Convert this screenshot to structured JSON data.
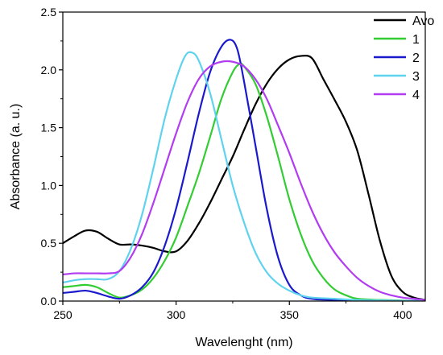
{
  "chart_data": {
    "type": "line",
    "xlabel": "Wavelenght (nm)",
    "ylabel": "Absorbance (a. u.)",
    "xlim": [
      250,
      410
    ],
    "ylim": [
      0,
      2.5
    ],
    "xticks": [
      250,
      300,
      350,
      400
    ],
    "yticks": [
      0.0,
      0.5,
      1.0,
      1.5,
      2.0,
      2.5
    ],
    "xtick_labels": [
      "250",
      "300",
      "350",
      "400"
    ],
    "ytick_labels": [
      "0.0",
      "0.5",
      "1.0",
      "1.5",
      "2.0",
      "2.5"
    ],
    "grid": false,
    "legend_position": "top-right",
    "series": [
      {
        "name": "Avo",
        "color": "#000000",
        "points": [
          [
            250,
            0.5
          ],
          [
            255,
            0.56
          ],
          [
            260,
            0.61
          ],
          [
            265,
            0.6
          ],
          [
            270,
            0.54
          ],
          [
            275,
            0.49
          ],
          [
            280,
            0.49
          ],
          [
            285,
            0.48
          ],
          [
            290,
            0.46
          ],
          [
            295,
            0.43
          ],
          [
            300,
            0.43
          ],
          [
            305,
            0.52
          ],
          [
            310,
            0.67
          ],
          [
            315,
            0.85
          ],
          [
            320,
            1.05
          ],
          [
            325,
            1.25
          ],
          [
            330,
            1.48
          ],
          [
            335,
            1.7
          ],
          [
            340,
            1.88
          ],
          [
            345,
            2.01
          ],
          [
            350,
            2.09
          ],
          [
            355,
            2.12
          ],
          [
            360,
            2.1
          ],
          [
            365,
            1.92
          ],
          [
            370,
            1.74
          ],
          [
            375,
            1.55
          ],
          [
            380,
            1.3
          ],
          [
            385,
            0.92
          ],
          [
            390,
            0.52
          ],
          [
            395,
            0.22
          ],
          [
            400,
            0.08
          ],
          [
            405,
            0.03
          ],
          [
            410,
            0.01
          ]
        ]
      },
      {
        "name": "1",
        "color": "#33cc33",
        "points": [
          [
            250,
            0.12
          ],
          [
            255,
            0.13
          ],
          [
            260,
            0.14
          ],
          [
            265,
            0.12
          ],
          [
            270,
            0.07
          ],
          [
            275,
            0.03
          ],
          [
            280,
            0.05
          ],
          [
            285,
            0.1
          ],
          [
            290,
            0.2
          ],
          [
            295,
            0.35
          ],
          [
            300,
            0.55
          ],
          [
            305,
            0.82
          ],
          [
            310,
            1.1
          ],
          [
            315,
            1.42
          ],
          [
            320,
            1.75
          ],
          [
            325,
            1.98
          ],
          [
            328,
            2.05
          ],
          [
            330,
            2.03
          ],
          [
            335,
            1.88
          ],
          [
            340,
            1.6
          ],
          [
            345,
            1.25
          ],
          [
            350,
            0.88
          ],
          [
            355,
            0.58
          ],
          [
            360,
            0.35
          ],
          [
            365,
            0.2
          ],
          [
            370,
            0.1
          ],
          [
            375,
            0.05
          ],
          [
            380,
            0.02
          ],
          [
            390,
            0.01
          ],
          [
            410,
            0.0
          ]
        ]
      },
      {
        "name": "2",
        "color": "#1a1acc",
        "points": [
          [
            250,
            0.07
          ],
          [
            255,
            0.08
          ],
          [
            260,
            0.09
          ],
          [
            265,
            0.07
          ],
          [
            270,
            0.04
          ],
          [
            275,
            0.02
          ],
          [
            280,
            0.05
          ],
          [
            285,
            0.12
          ],
          [
            290,
            0.25
          ],
          [
            295,
            0.48
          ],
          [
            300,
            0.8
          ],
          [
            305,
            1.2
          ],
          [
            310,
            1.62
          ],
          [
            315,
            1.98
          ],
          [
            320,
            2.2
          ],
          [
            324,
            2.26
          ],
          [
            327,
            2.18
          ],
          [
            330,
            1.9
          ],
          [
            335,
            1.35
          ],
          [
            340,
            0.8
          ],
          [
            345,
            0.38
          ],
          [
            350,
            0.14
          ],
          [
            355,
            0.05
          ],
          [
            360,
            0.02
          ],
          [
            370,
            0.01
          ],
          [
            410,
            0.0
          ]
        ]
      },
      {
        "name": "3",
        "color": "#5fd3ee",
        "points": [
          [
            250,
            0.16
          ],
          [
            255,
            0.18
          ],
          [
            260,
            0.19
          ],
          [
            265,
            0.19
          ],
          [
            270,
            0.19
          ],
          [
            275,
            0.26
          ],
          [
            280,
            0.45
          ],
          [
            285,
            0.75
          ],
          [
            290,
            1.15
          ],
          [
            295,
            1.58
          ],
          [
            300,
            1.92
          ],
          [
            304,
            2.12
          ],
          [
            307,
            2.15
          ],
          [
            310,
            2.08
          ],
          [
            315,
            1.8
          ],
          [
            320,
            1.4
          ],
          [
            325,
            1.0
          ],
          [
            330,
            0.68
          ],
          [
            335,
            0.42
          ],
          [
            340,
            0.25
          ],
          [
            345,
            0.15
          ],
          [
            350,
            0.09
          ],
          [
            355,
            0.05
          ],
          [
            360,
            0.03
          ],
          [
            370,
            0.02
          ],
          [
            380,
            0.01
          ],
          [
            410,
            0.0
          ]
        ]
      },
      {
        "name": "4",
        "color": "#b23cf0",
        "points": [
          [
            250,
            0.23
          ],
          [
            255,
            0.24
          ],
          [
            260,
            0.24
          ],
          [
            265,
            0.24
          ],
          [
            270,
            0.24
          ],
          [
            275,
            0.26
          ],
          [
            280,
            0.38
          ],
          [
            285,
            0.58
          ],
          [
            290,
            0.85
          ],
          [
            295,
            1.15
          ],
          [
            300,
            1.45
          ],
          [
            305,
            1.72
          ],
          [
            310,
            1.92
          ],
          [
            315,
            2.03
          ],
          [
            320,
            2.07
          ],
          [
            325,
            2.07
          ],
          [
            330,
            2.03
          ],
          [
            335,
            1.92
          ],
          [
            340,
            1.75
          ],
          [
            345,
            1.52
          ],
          [
            350,
            1.28
          ],
          [
            355,
            1.02
          ],
          [
            360,
            0.78
          ],
          [
            365,
            0.58
          ],
          [
            370,
            0.42
          ],
          [
            375,
            0.3
          ],
          [
            380,
            0.2
          ],
          [
            385,
            0.13
          ],
          [
            390,
            0.08
          ],
          [
            395,
            0.05
          ],
          [
            400,
            0.03
          ],
          [
            405,
            0.02
          ],
          [
            410,
            0.01
          ]
        ]
      }
    ]
  }
}
